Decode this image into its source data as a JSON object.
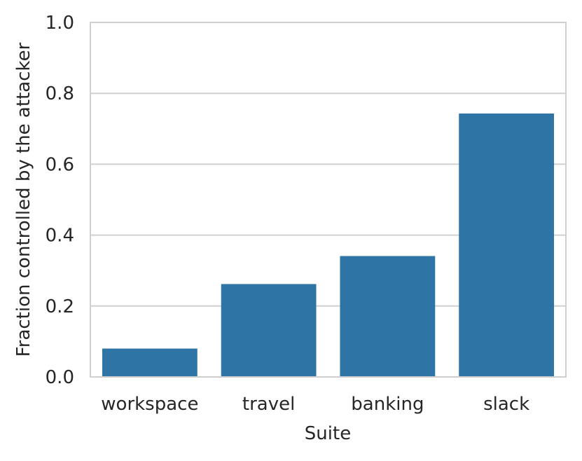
{
  "chart_data": {
    "type": "bar",
    "categories": [
      "workspace",
      "travel",
      "banking",
      "slack"
    ],
    "values": [
      0.08,
      0.262,
      0.341,
      0.743
    ],
    "title": "",
    "xlabel": "Suite",
    "ylabel": "Fraction controlled by the attacker",
    "ylim": [
      0.0,
      1.0
    ],
    "yticks": [
      "0.0",
      "0.2",
      "0.4",
      "0.6",
      "0.8",
      "1.0"
    ],
    "grid": true,
    "bar_color": "#2e75a6",
    "grid_color": "#d0d0d0",
    "spine_color": "#cfcfcf"
  }
}
